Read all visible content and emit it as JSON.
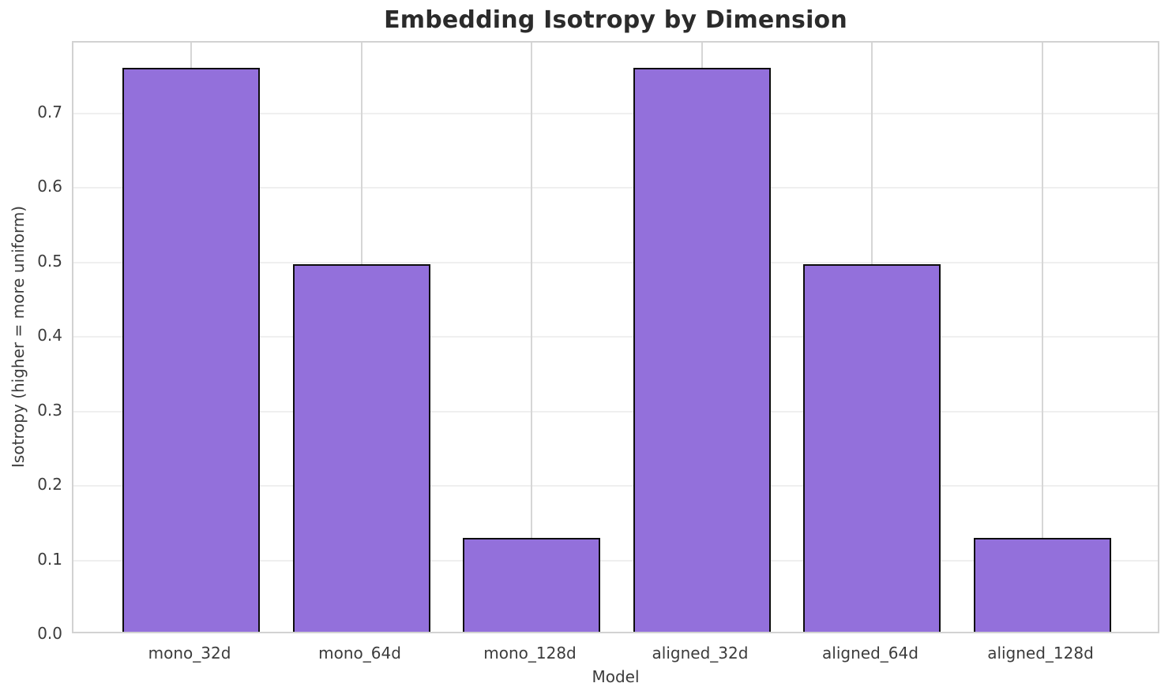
{
  "chart_data": {
    "type": "bar",
    "title": "Embedding Isotropy by Dimension",
    "xlabel": "Model",
    "ylabel": "Isotropy (higher = more uniform)",
    "categories": [
      "mono_32d",
      "mono_64d",
      "mono_128d",
      "aligned_32d",
      "aligned_64d",
      "aligned_128d"
    ],
    "values": [
      0.757,
      0.493,
      0.126,
      0.757,
      0.493,
      0.126
    ],
    "ylim": [
      0,
      0.795
    ],
    "yticks": [
      0.0,
      0.1,
      0.2,
      0.3,
      0.4,
      0.5,
      0.6,
      0.7
    ],
    "ytick_labels": [
      "0.0",
      "0.1",
      "0.2",
      "0.3",
      "0.4",
      "0.5",
      "0.6",
      "0.7"
    ],
    "grid": true,
    "legend_position": "none",
    "bar_color": "#9370DB",
    "bar_edge_color": "#0d0d0d",
    "grid_color_horizontal": "#efefef",
    "grid_color_vertical": "#d6d6d6",
    "spine_color": "#d2d2d2",
    "title_color": "#2b2b2b",
    "tick_label_color": "#3c3c3c",
    "background_color": "#ffffff"
  }
}
